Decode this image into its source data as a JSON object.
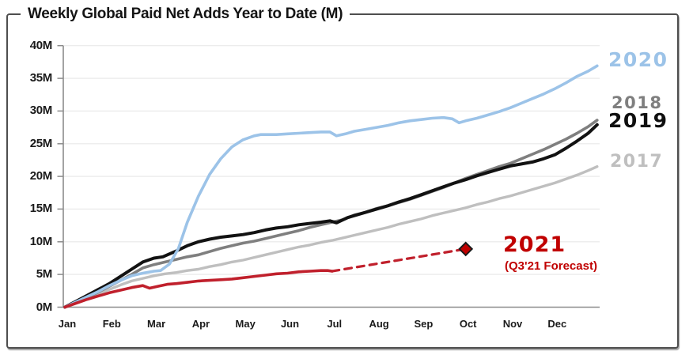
{
  "chart_data": {
    "type": "line",
    "title": "Weekly Global Paid Net Adds Year to Date (M)",
    "xlabel": "",
    "ylabel": "",
    "x_categories": [
      "Jan",
      "Feb",
      "Mar",
      "Apr",
      "May",
      "Jun",
      "Jul",
      "Aug",
      "Sep",
      "Oct",
      "Nov",
      "Dec"
    ],
    "y_ticks": [
      {
        "v": 0,
        "label": "0M"
      },
      {
        "v": 5,
        "label": "5M"
      },
      {
        "v": 10,
        "label": "10M"
      },
      {
        "v": 15,
        "label": "15M"
      },
      {
        "v": 20,
        "label": "20M"
      },
      {
        "v": 25,
        "label": "25M"
      },
      {
        "v": 30,
        "label": "30M"
      },
      {
        "v": 35,
        "label": "35M"
      },
      {
        "v": 40,
        "label": "40M"
      }
    ],
    "ylim": [
      0,
      40
    ],
    "grid": "horizontal",
    "legend_position": "right-of-line-ends",
    "units": "millions of paid net subscriber additions, cumulative year to date",
    "series": [
      {
        "name": "2017",
        "color": "#BFBFBF",
        "width": 3.4,
        "points": [
          [
            0,
            0
          ],
          [
            0.25,
            0.7
          ],
          [
            0.5,
            1.3
          ],
          [
            0.75,
            2.0
          ],
          [
            1,
            2.7
          ],
          [
            1.25,
            3.4
          ],
          [
            1.5,
            4.0
          ],
          [
            1.75,
            4.4
          ],
          [
            2,
            4.8
          ],
          [
            2.25,
            5.1
          ],
          [
            2.5,
            5.3
          ],
          [
            2.75,
            5.6
          ],
          [
            3,
            5.8
          ],
          [
            3.25,
            6.2
          ],
          [
            3.5,
            6.5
          ],
          [
            3.75,
            6.9
          ],
          [
            4,
            7.2
          ],
          [
            4.25,
            7.6
          ],
          [
            4.5,
            8.0
          ],
          [
            4.75,
            8.4
          ],
          [
            5,
            8.8
          ],
          [
            5.25,
            9.2
          ],
          [
            5.5,
            9.5
          ],
          [
            5.75,
            9.9
          ],
          [
            6,
            10.2
          ],
          [
            6.25,
            10.6
          ],
          [
            6.5,
            11.0
          ],
          [
            6.75,
            11.4
          ],
          [
            7,
            11.8
          ],
          [
            7.25,
            12.2
          ],
          [
            7.5,
            12.7
          ],
          [
            7.75,
            13.1
          ],
          [
            8,
            13.5
          ],
          [
            8.25,
            14.0
          ],
          [
            8.5,
            14.4
          ],
          [
            8.75,
            14.8
          ],
          [
            9,
            15.2
          ],
          [
            9.25,
            15.7
          ],
          [
            9.5,
            16.1
          ],
          [
            9.75,
            16.6
          ],
          [
            10,
            17.0
          ],
          [
            10.25,
            17.5
          ],
          [
            10.5,
            18.0
          ],
          [
            10.75,
            18.5
          ],
          [
            11,
            19.0
          ],
          [
            11.25,
            19.6
          ],
          [
            11.5,
            20.2
          ],
          [
            11.75,
            20.9
          ],
          [
            11.95,
            21.5
          ]
        ]
      },
      {
        "name": "2018",
        "color": "#7F7F7F",
        "width": 3.6,
        "points": [
          [
            0,
            0
          ],
          [
            0.25,
            0.7
          ],
          [
            0.5,
            1.5
          ],
          [
            0.75,
            2.3
          ],
          [
            1,
            3.2
          ],
          [
            1.25,
            4.1
          ],
          [
            1.5,
            5.0
          ],
          [
            1.75,
            6.0
          ],
          [
            2,
            6.5
          ],
          [
            2.25,
            6.9
          ],
          [
            2.5,
            7.3
          ],
          [
            2.75,
            7.7
          ],
          [
            3,
            8.0
          ],
          [
            3.25,
            8.5
          ],
          [
            3.5,
            9.0
          ],
          [
            3.75,
            9.4
          ],
          [
            4,
            9.8
          ],
          [
            4.25,
            10.1
          ],
          [
            4.5,
            10.5
          ],
          [
            4.75,
            10.9
          ],
          [
            5,
            11.3
          ],
          [
            5.25,
            11.7
          ],
          [
            5.5,
            12.2
          ],
          [
            5.75,
            12.6
          ],
          [
            6,
            13.0
          ],
          [
            6.25,
            13.4
          ],
          [
            6.5,
            14.1
          ],
          [
            6.75,
            14.5
          ],
          [
            7,
            15.1
          ],
          [
            7.25,
            15.5
          ],
          [
            7.5,
            16.0
          ],
          [
            7.75,
            16.5
          ],
          [
            8,
            17.1
          ],
          [
            8.25,
            17.7
          ],
          [
            8.5,
            18.3
          ],
          [
            8.75,
            19.0
          ],
          [
            9,
            19.7
          ],
          [
            9.25,
            20.3
          ],
          [
            9.5,
            20.9
          ],
          [
            9.75,
            21.5
          ],
          [
            10,
            22.0
          ],
          [
            10.25,
            22.7
          ],
          [
            10.5,
            23.4
          ],
          [
            10.75,
            24.1
          ],
          [
            11,
            24.9
          ],
          [
            11.25,
            25.7
          ],
          [
            11.5,
            26.6
          ],
          [
            11.75,
            27.6
          ],
          [
            11.95,
            28.6
          ]
        ]
      },
      {
        "name": "2019",
        "color": "#121212",
        "width": 4,
        "points": [
          [
            0,
            0
          ],
          [
            0.25,
            0.9
          ],
          [
            0.5,
            1.8
          ],
          [
            0.75,
            2.7
          ],
          [
            1,
            3.6
          ],
          [
            1.25,
            4.7
          ],
          [
            1.5,
            5.8
          ],
          [
            1.75,
            6.9
          ],
          [
            2,
            7.5
          ],
          [
            2.2,
            7.7
          ],
          [
            2.5,
            8.6
          ],
          [
            2.75,
            9.4
          ],
          [
            3,
            10.0
          ],
          [
            3.25,
            10.4
          ],
          [
            3.5,
            10.7
          ],
          [
            3.75,
            10.9
          ],
          [
            4,
            11.1
          ],
          [
            4.25,
            11.4
          ],
          [
            4.5,
            11.8
          ],
          [
            4.75,
            12.1
          ],
          [
            5,
            12.3
          ],
          [
            5.25,
            12.6
          ],
          [
            5.5,
            12.8
          ],
          [
            5.75,
            13.0
          ],
          [
            5.95,
            13.2
          ],
          [
            6.1,
            12.9
          ],
          [
            6.35,
            13.7
          ],
          [
            6.5,
            14.0
          ],
          [
            7,
            15.0
          ],
          [
            7.25,
            15.5
          ],
          [
            7.5,
            16.1
          ],
          [
            7.75,
            16.6
          ],
          [
            8,
            17.2
          ],
          [
            8.25,
            17.8
          ],
          [
            8.5,
            18.4
          ],
          [
            8.75,
            19.0
          ],
          [
            9,
            19.5
          ],
          [
            9.25,
            20.1
          ],
          [
            9.5,
            20.6
          ],
          [
            9.75,
            21.1
          ],
          [
            10,
            21.6
          ],
          [
            10.25,
            21.9
          ],
          [
            10.5,
            22.2
          ],
          [
            10.75,
            22.7
          ],
          [
            11,
            23.3
          ],
          [
            11.25,
            24.3
          ],
          [
            11.5,
            25.4
          ],
          [
            11.75,
            26.6
          ],
          [
            11.95,
            27.9
          ]
        ]
      },
      {
        "name": "2020",
        "color": "#9CC3E8",
        "width": 3.6,
        "points": [
          [
            0,
            0
          ],
          [
            0.25,
            0.8
          ],
          [
            0.5,
            1.6
          ],
          [
            0.75,
            2.4
          ],
          [
            1,
            3.3
          ],
          [
            1.25,
            4.1
          ],
          [
            1.5,
            4.8
          ],
          [
            1.75,
            5.2
          ],
          [
            2,
            5.5
          ],
          [
            2.15,
            5.6
          ],
          [
            2.35,
            6.6
          ],
          [
            2.55,
            9.0
          ],
          [
            2.75,
            13.0
          ],
          [
            3,
            17.0
          ],
          [
            3.25,
            20.3
          ],
          [
            3.5,
            22.7
          ],
          [
            3.75,
            24.5
          ],
          [
            4,
            25.6
          ],
          [
            4.25,
            26.2
          ],
          [
            4.4,
            26.4
          ],
          [
            4.75,
            26.4
          ],
          [
            5,
            26.5
          ],
          [
            5.25,
            26.6
          ],
          [
            5.5,
            26.7
          ],
          [
            5.75,
            26.8
          ],
          [
            5.95,
            26.8
          ],
          [
            6.1,
            26.2
          ],
          [
            6.3,
            26.5
          ],
          [
            6.5,
            26.9
          ],
          [
            6.75,
            27.2
          ],
          [
            7,
            27.5
          ],
          [
            7.25,
            27.8
          ],
          [
            7.5,
            28.2
          ],
          [
            7.75,
            28.5
          ],
          [
            8,
            28.7
          ],
          [
            8.25,
            28.9
          ],
          [
            8.5,
            29.0
          ],
          [
            8.7,
            28.8
          ],
          [
            8.85,
            28.2
          ],
          [
            9,
            28.5
          ],
          [
            9.25,
            28.9
          ],
          [
            9.5,
            29.4
          ],
          [
            9.75,
            29.9
          ],
          [
            10,
            30.5
          ],
          [
            10.25,
            31.2
          ],
          [
            10.5,
            31.9
          ],
          [
            10.75,
            32.6
          ],
          [
            11,
            33.4
          ],
          [
            11.25,
            34.3
          ],
          [
            11.5,
            35.3
          ],
          [
            11.75,
            36.1
          ],
          [
            11.95,
            36.9
          ]
        ]
      },
      {
        "name": "2021",
        "color": "#C0202C",
        "width": 3.6,
        "points": [
          [
            0,
            0
          ],
          [
            0.25,
            0.6
          ],
          [
            0.5,
            1.2
          ],
          [
            0.75,
            1.7
          ],
          [
            1,
            2.2
          ],
          [
            1.25,
            2.6
          ],
          [
            1.5,
            3.0
          ],
          [
            1.75,
            3.3
          ],
          [
            1.9,
            2.9
          ],
          [
            2.1,
            3.2
          ],
          [
            2.3,
            3.5
          ],
          [
            2.5,
            3.6
          ],
          [
            2.75,
            3.8
          ],
          [
            3,
            4.0
          ],
          [
            3.25,
            4.1
          ],
          [
            3.5,
            4.2
          ],
          [
            3.75,
            4.3
          ],
          [
            4,
            4.5
          ],
          [
            4.25,
            4.7
          ],
          [
            4.5,
            4.9
          ],
          [
            4.75,
            5.1
          ],
          [
            5,
            5.2
          ],
          [
            5.25,
            5.4
          ],
          [
            5.5,
            5.5
          ],
          [
            5.75,
            5.6
          ],
          [
            5.9,
            5.6
          ],
          [
            6,
            5.5
          ]
        ]
      },
      {
        "name": "2021 forecast",
        "color": "#C0202C",
        "width": 3.2,
        "dash": "9 7",
        "marker_end": {
          "shape": "diamond",
          "fill": "#C00000",
          "stroke": "#1a1a1a",
          "size": 8
        },
        "points": [
          [
            6,
            5.5
          ],
          [
            9,
            8.9
          ]
        ]
      }
    ],
    "annotations": {
      "forecast_label": "2021",
      "forecast_note": "(Q3'21 Forecast)",
      "forecast_point": {
        "x_month": 9,
        "value": 8.9
      }
    }
  }
}
